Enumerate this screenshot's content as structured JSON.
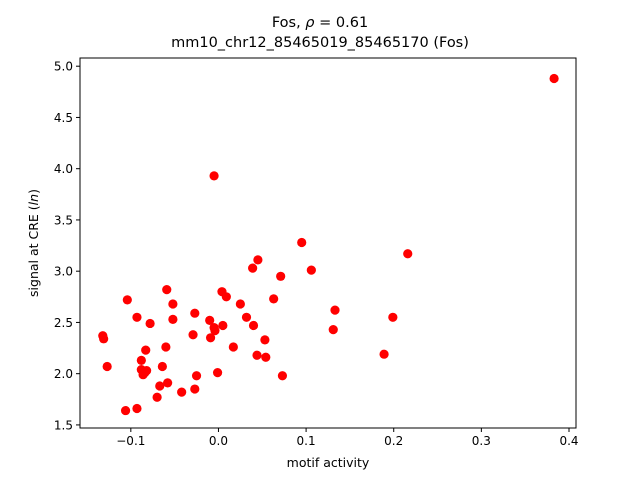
{
  "chart_data": {
    "type": "scatter",
    "title_gene": "Fos",
    "title_rho_symbol": "ρ",
    "title_rho_value": "= 0.61",
    "subtitle": "mm10_chr12_85465019_85465170 (Fos)",
    "xlabel": "motif activity",
    "ylabel_prefix": "signal at CRE (",
    "ylabel_italic": "ln",
    "ylabel_suffix": ")",
    "xlim": [
      -0.158,
      0.408
    ],
    "ylim": [
      1.47,
      5.08
    ],
    "xticks": [
      -0.1,
      0.0,
      0.1,
      0.2,
      0.3,
      0.4
    ],
    "xtick_labels": [
      "−0.1",
      "0.0",
      "0.1",
      "0.2",
      "0.3",
      "0.4"
    ],
    "yticks": [
      1.5,
      2.0,
      2.5,
      3.0,
      3.5,
      4.0,
      4.5,
      5.0
    ],
    "ytick_labels": [
      "1.5",
      "2.0",
      "2.5",
      "3.0",
      "3.5",
      "4.0",
      "4.5",
      "5.0"
    ],
    "grid": false,
    "marker_color": "#ff0000",
    "points": [
      {
        "x": 0.383,
        "y": 4.88
      },
      {
        "x": -0.005,
        "y": 3.93
      },
      {
        "x": 0.095,
        "y": 3.28
      },
      {
        "x": 0.216,
        "y": 3.17
      },
      {
        "x": 0.045,
        "y": 3.11
      },
      {
        "x": 0.039,
        "y": 3.03
      },
      {
        "x": 0.106,
        "y": 3.01
      },
      {
        "x": 0.071,
        "y": 2.95
      },
      {
        "x": -0.059,
        "y": 2.82
      },
      {
        "x": 0.004,
        "y": 2.8
      },
      {
        "x": 0.009,
        "y": 2.75
      },
      {
        "x": 0.063,
        "y": 2.73
      },
      {
        "x": -0.104,
        "y": 2.72
      },
      {
        "x": -0.052,
        "y": 2.68
      },
      {
        "x": 0.025,
        "y": 2.68
      },
      {
        "x": 0.133,
        "y": 2.62
      },
      {
        "x": -0.027,
        "y": 2.59
      },
      {
        "x": -0.093,
        "y": 2.55
      },
      {
        "x": 0.032,
        "y": 2.55
      },
      {
        "x": 0.199,
        "y": 2.55
      },
      {
        "x": -0.052,
        "y": 2.53
      },
      {
        "x": -0.01,
        "y": 2.52
      },
      {
        "x": -0.078,
        "y": 2.49
      },
      {
        "x": 0.005,
        "y": 2.47
      },
      {
        "x": -0.005,
        "y": 2.45
      },
      {
        "x": 0.04,
        "y": 2.47
      },
      {
        "x": 0.131,
        "y": 2.43
      },
      {
        "x": -0.004,
        "y": 2.42
      },
      {
        "x": -0.029,
        "y": 2.38
      },
      {
        "x": -0.132,
        "y": 2.37
      },
      {
        "x": -0.131,
        "y": 2.34
      },
      {
        "x": -0.009,
        "y": 2.35
      },
      {
        "x": 0.053,
        "y": 2.33
      },
      {
        "x": -0.06,
        "y": 2.26
      },
      {
        "x": 0.017,
        "y": 2.26
      },
      {
        "x": -0.083,
        "y": 2.23
      },
      {
        "x": 0.189,
        "y": 2.19
      },
      {
        "x": 0.044,
        "y": 2.18
      },
      {
        "x": 0.054,
        "y": 2.16
      },
      {
        "x": -0.088,
        "y": 2.13
      },
      {
        "x": -0.127,
        "y": 2.07
      },
      {
        "x": -0.064,
        "y": 2.07
      },
      {
        "x": -0.088,
        "y": 2.04
      },
      {
        "x": -0.082,
        "y": 2.03
      },
      {
        "x": -0.084,
        "y": 2.01
      },
      {
        "x": -0.001,
        "y": 2.01
      },
      {
        "x": -0.086,
        "y": 1.99
      },
      {
        "x": -0.025,
        "y": 1.98
      },
      {
        "x": 0.073,
        "y": 1.98
      },
      {
        "x": -0.058,
        "y": 1.91
      },
      {
        "x": -0.067,
        "y": 1.88
      },
      {
        "x": -0.027,
        "y": 1.85
      },
      {
        "x": -0.042,
        "y": 1.82
      },
      {
        "x": -0.07,
        "y": 1.77
      },
      {
        "x": -0.093,
        "y": 1.66
      },
      {
        "x": -0.106,
        "y": 1.64
      }
    ]
  }
}
